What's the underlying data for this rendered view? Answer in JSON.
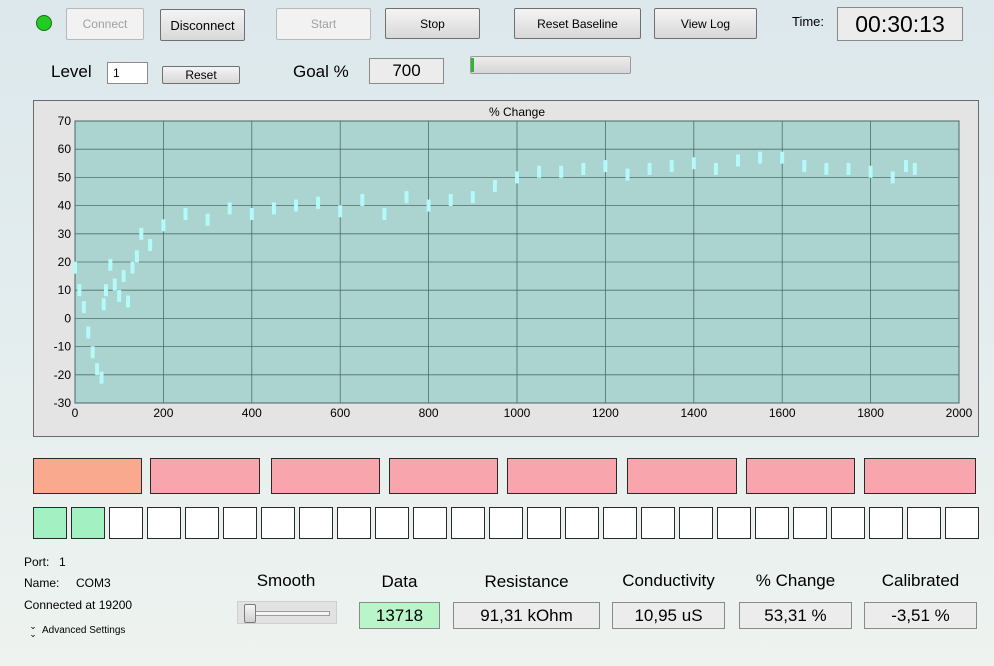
{
  "toolbar": {
    "connect_label": "Connect",
    "disconnect_label": "Disconnect",
    "start_label": "Start",
    "stop_label": "Stop",
    "reset_baseline_label": "Reset Baseline",
    "view_log_label": "View Log",
    "time_label": "Time:",
    "time_value": "00:30:13",
    "status_color": "#22cc22"
  },
  "level": {
    "label": "Level",
    "value": "1",
    "reset_label": "Reset"
  },
  "goal": {
    "label": "Goal %",
    "value": "700",
    "progress": 0.0
  },
  "chart_data": {
    "type": "scatter",
    "title": "% Change",
    "xlim": [
      0,
      2000
    ],
    "ylim": [
      -30,
      70
    ],
    "xticks": [
      "0",
      "200",
      "400",
      "600",
      "800",
      "1000",
      "1200",
      "1400",
      "1600",
      "1800",
      "2000"
    ],
    "yticks": [
      "70",
      "60",
      "50",
      "40",
      "30",
      "20",
      "10",
      "0",
      "-10",
      "-20",
      "-30"
    ],
    "grid": true,
    "point_color": "#b4fafa",
    "background": "#abd3d0",
    "series": [
      {
        "x": [
          0,
          10,
          20,
          30,
          40,
          50,
          60,
          65,
          70,
          80,
          90,
          100,
          110,
          120,
          130,
          140,
          150,
          170,
          200,
          250,
          300,
          350,
          400,
          450,
          500,
          550,
          600,
          650,
          700,
          750,
          800,
          850,
          900,
          950,
          1000,
          1050,
          1100,
          1150,
          1200,
          1250,
          1300,
          1350,
          1400,
          1450,
          1500,
          1550,
          1600,
          1650,
          1700,
          1750,
          1800,
          1850,
          1880,
          1900
        ],
        "y": [
          18,
          10,
          4,
          -5,
          -12,
          -18,
          -21,
          5,
          10,
          19,
          12,
          8,
          15,
          6,
          18,
          22,
          30,
          26,
          33,
          37,
          35,
          39,
          37,
          39,
          40,
          41,
          38,
          42,
          37,
          43,
          40,
          42,
          43,
          47,
          50,
          52,
          52,
          53,
          54,
          51,
          53,
          54,
          55,
          53,
          56,
          57,
          57,
          54,
          53,
          53,
          52,
          50,
          54,
          53
        ]
      }
    ]
  },
  "status_bars": {
    "colors": [
      "#f9aa8e",
      "#f8a5ad",
      "#f8a5ad",
      "#f8a5ad",
      "#f8a5ad",
      "#f8a5ad",
      "#f8a5ad",
      "#f8a5ad"
    ]
  },
  "level_indicators": {
    "filled": 2,
    "total": 25,
    "filled_color": "#a3f0c2"
  },
  "connection": {
    "port_label": "Port:",
    "port_value": "1",
    "name_label": "Name:",
    "name_value": "COM3",
    "status_text": "Connected at 19200",
    "advanced_label": "Advanced Settings"
  },
  "readouts": {
    "smooth_label": "Smooth",
    "smooth_level": 0.0,
    "data_label": "Data",
    "data_value": "13718",
    "resistance_label": "Resistance",
    "resistance_value": "91,31 kOhm",
    "conductivity_label": "Conductivity",
    "conductivity_value": "10,95 uS",
    "change_label": "% Change",
    "change_value": "53,31 %",
    "calibrated_label": "Calibrated",
    "calibrated_value": "-3,51 %"
  }
}
